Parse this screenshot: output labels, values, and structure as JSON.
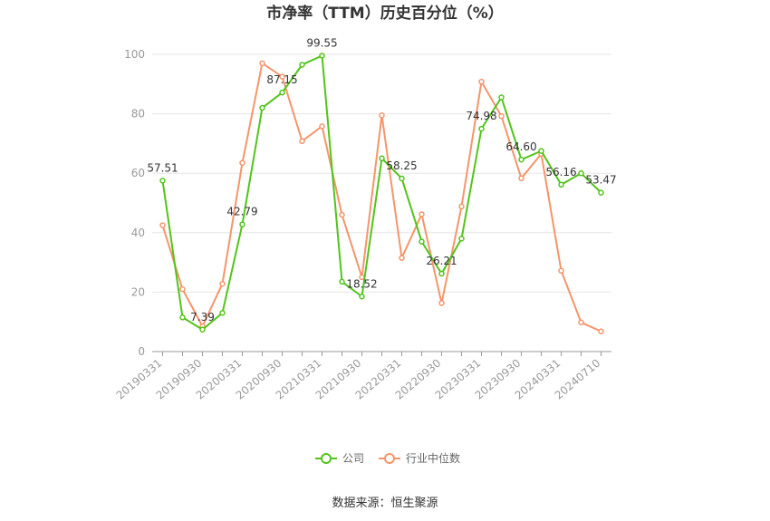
{
  "chart_data": {
    "type": "line",
    "title": "市净率（TTM）历史百分位（%）",
    "source": "数据来源：恒生聚源",
    "xlabel": "",
    "ylabel": "",
    "ylim": [
      0,
      100
    ],
    "yticks": [
      "0",
      "20",
      "40",
      "60",
      "80",
      "100"
    ],
    "grid": true,
    "legend": "bottom",
    "x": [
      "20190331",
      "20190630",
      "20190930",
      "20191231",
      "20200331",
      "20200630",
      "20200930",
      "20201231",
      "20210331",
      "20210630",
      "20210930",
      "20211231",
      "20220331",
      "20220630",
      "20220930",
      "20221231",
      "20230331",
      "20230630",
      "20230930",
      "20231231",
      "20240331",
      "20240630",
      "20240710"
    ],
    "xtick_labels": [
      "20190331",
      "20190930",
      "20200331",
      "20200930",
      "20210331",
      "20210930",
      "20220331",
      "20220930",
      "20230331",
      "20230930",
      "20240331",
      "20240710"
    ],
    "series": [
      {
        "name": "公司",
        "color": "#52c41a",
        "values": [
          57.51,
          11.5,
          7.39,
          13.0,
          42.79,
          82.0,
          87.15,
          96.5,
          99.55,
          23.5,
          18.52,
          65.0,
          58.25,
          37.0,
          26.21,
          38.0,
          74.98,
          85.5,
          64.6,
          67.5,
          56.16,
          60.0,
          53.47
        ],
        "labels": [
          "57.51",
          "",
          "7.39",
          "",
          "42.79",
          "",
          "87.15",
          "",
          "99.55",
          "",
          "18.52",
          "",
          "58.25",
          "",
          "26.21",
          "",
          "74.98",
          "",
          "64.60",
          "",
          "56.16",
          "",
          "53.47"
        ]
      },
      {
        "name": "行业中位数",
        "color": "#f5956b",
        "values": [
          42.5,
          21.0,
          8.5,
          22.8,
          63.5,
          97.0,
          92.5,
          70.8,
          75.8,
          46.0,
          25.0,
          79.5,
          31.5,
          46.2,
          16.3,
          48.8,
          90.8,
          79.2,
          58.3,
          66.5,
          27.2,
          9.8,
          6.8
        ]
      }
    ]
  }
}
